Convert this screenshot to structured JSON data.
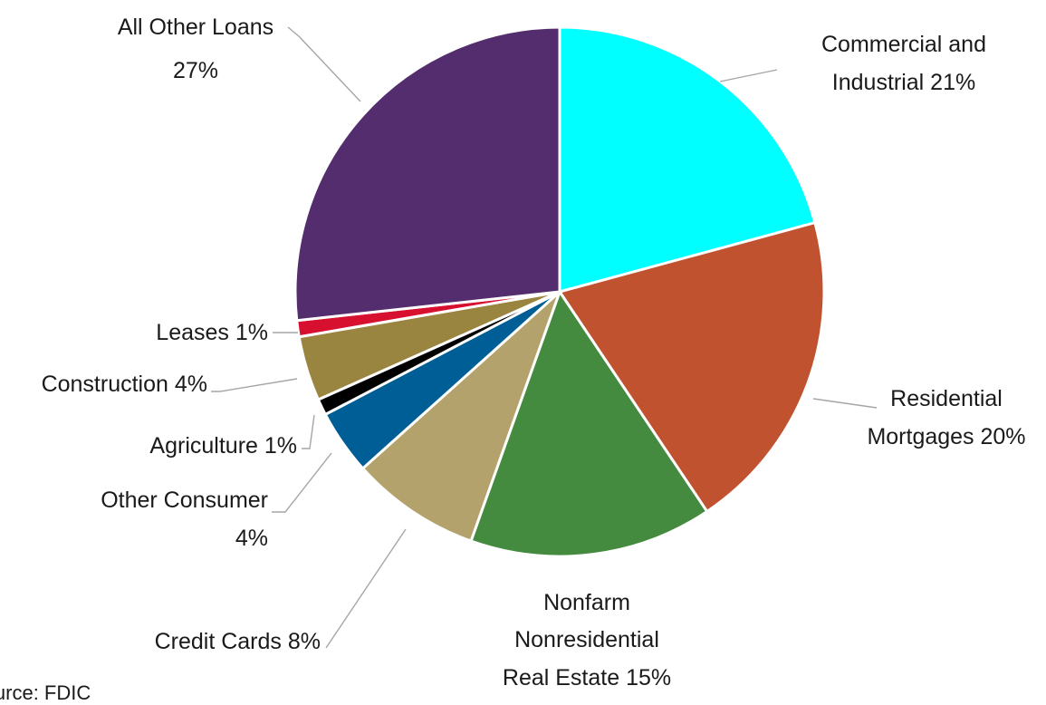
{
  "chart_data": {
    "type": "pie",
    "title": "",
    "slices": [
      {
        "name": "Commercial and Industrial",
        "value": 21,
        "color": "#00FFFF",
        "label_lines": [
          "Commercial and",
          "Industrial  21%"
        ]
      },
      {
        "name": "Residential Mortgages",
        "value": 20,
        "color": "#C0522F",
        "label_lines": [
          "Residential",
          "Mortgages 20%"
        ]
      },
      {
        "name": "Nonfarm Nonresidential Real Estate",
        "value": 15,
        "color": "#458B3F",
        "label_lines": [
          "Nonfarm",
          "Nonresidential",
          "Real Estate 15%"
        ]
      },
      {
        "name": "Credit Cards",
        "value": 8,
        "color": "#B3A26B",
        "label_lines": [
          "Credit Cards 8%"
        ]
      },
      {
        "name": "Other Consumer",
        "value": 4,
        "color": "#005E96",
        "label_lines": [
          "Other Consumer",
          "4%"
        ]
      },
      {
        "name": "Agriculture",
        "value": 1,
        "color": "#000000",
        "label_lines": [
          "Agriculture 1%"
        ]
      },
      {
        "name": "Construction",
        "value": 4,
        "color": "#9A8540",
        "label_lines": [
          "Construction 4%"
        ]
      },
      {
        "name": "Leases",
        "value": 1,
        "color": "#D7102F",
        "label_lines": [
          "Leases 1%"
        ]
      },
      {
        "name": "All Other Loans",
        "value": 27,
        "color": "#532D6D",
        "label_lines": [
          "All Other Loans",
          "27%"
        ]
      }
    ],
    "legend": "none",
    "data_labels": "outside with leader lines"
  },
  "source": {
    "text": "Source: FDIC"
  }
}
